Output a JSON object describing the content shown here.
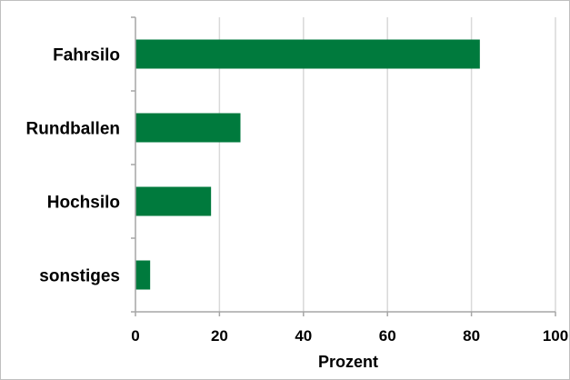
{
  "chart_data": {
    "type": "bar",
    "orientation": "horizontal",
    "categories": [
      "Fahrsilo",
      "Rundballen",
      "Hochsilo",
      "sonstiges"
    ],
    "values": [
      82,
      25,
      18,
      3.5
    ],
    "xlabel": "Prozent",
    "ylabel": "",
    "xlim": [
      0,
      100
    ],
    "xticks": [
      0,
      20,
      40,
      60,
      80,
      100
    ],
    "xtick_labels": [
      "0",
      "20",
      "40",
      "60",
      "80",
      "100"
    ],
    "grid": "vertical",
    "legend": "none",
    "bar_color": "#007a3d",
    "grid_color": "#d9d9d9",
    "axis_color": "#a6a6a6"
  }
}
